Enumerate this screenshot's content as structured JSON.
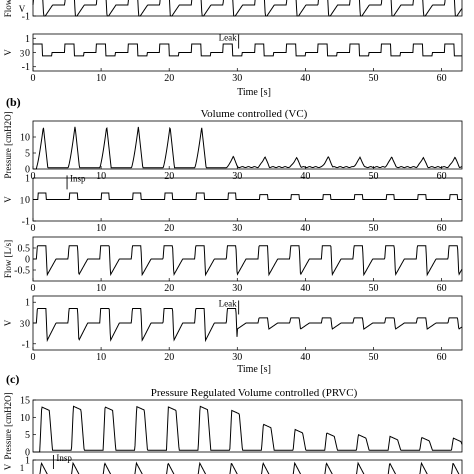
{
  "figure": {
    "panel_letters": [
      "(b)",
      "(c)"
    ],
    "panel_b_title": "Volume controlled (VC)",
    "panel_c_title": "Pressure Regulated Volume controlled (PRVC)",
    "top_x_label": "Time [s]",
    "b_x_label": "Time [s]",
    "annotations": {
      "leak": "Leak",
      "insp": "Insp"
    }
  },
  "chart_data": [
    {
      "id": "a-flow-tail",
      "type": "line",
      "ylabel": "Flow",
      "sublabel": "V",
      "xlim": [
        0,
        63
      ],
      "ylim": [
        -1,
        1
      ],
      "yticks": [
        -1
      ],
      "xticks": [],
      "series": [
        {
          "waveform": "flow_vc",
          "phase": 0,
          "amp": 1.0
        }
      ]
    },
    {
      "id": "a-v3",
      "type": "line",
      "ylabel": "V",
      "sublabel": "3",
      "xlim": [
        0,
        63
      ],
      "ylim": [
        -1.3,
        1.3
      ],
      "yticks": [
        1,
        0,
        -1
      ],
      "xticks": [
        0,
        10,
        20,
        30,
        40,
        50,
        60
      ],
      "xticklabels": [
        "0",
        "10",
        "20",
        "30",
        "40",
        "50",
        "60"
      ],
      "xlabel": "Time [s]",
      "series": [
        {
          "waveform": "square_v3",
          "phase": 0,
          "amp": 0.6
        }
      ],
      "annotations": [
        {
          "text": "Leak",
          "x": 30.2,
          "y": 0.7
        }
      ]
    },
    {
      "id": "b-pressure",
      "type": "line",
      "ylabel": "Pressure [cmH2O]",
      "sublabel": "",
      "xlim": [
        0,
        63
      ],
      "ylim": [
        0,
        15
      ],
      "yticks": [
        10,
        5,
        0
      ],
      "xticks": [
        0,
        10,
        20,
        30,
        40,
        50,
        60
      ],
      "xticklabels": [
        "0",
        "10",
        "20",
        "30",
        "40",
        "50",
        "60"
      ],
      "series": [
        {
          "waveform": "pressure_vc",
          "phase": 0.5,
          "peaks": [
            13.2,
            13.4,
            13.3,
            13.2,
            13.3,
            13.0,
            4.0,
            3.8,
            3.6,
            3.9,
            3.7,
            3.8,
            3.6
          ]
        }
      ]
    },
    {
      "id": "b-v1",
      "type": "line",
      "ylabel": "V",
      "sublabel": "1",
      "xlim": [
        0,
        63
      ],
      "ylim": [
        -1,
        1
      ],
      "yticks": [
        1,
        0,
        -1
      ],
      "xticks": [
        0,
        10,
        20,
        30,
        40,
        50,
        60
      ],
      "xticklabels": [
        "0",
        "10",
        "20",
        "30",
        "40",
        "50",
        "60"
      ],
      "series": [
        {
          "waveform": "square_v1",
          "phase": 0.5,
          "amp": 0.3
        }
      ],
      "annotations": [
        {
          "text": "Insp",
          "x": 5.0,
          "y": 0.75
        }
      ]
    },
    {
      "id": "b-v2",
      "type": "line",
      "ylabel": "Flow [L/s]",
      "sublabel": "V2",
      "xlim": [
        0,
        63
      ],
      "ylim": [
        -1,
        1
      ],
      "yticks": [
        0.5,
        0,
        -0.5
      ],
      "xticks": [
        0,
        10,
        20,
        30,
        40,
        50,
        60
      ],
      "xticklabels": [
        "0",
        "10",
        "20",
        "30",
        "40",
        "50",
        "60"
      ],
      "series": [
        {
          "waveform": "flow_vc",
          "phase": 0.5,
          "amp": 0.6
        }
      ]
    },
    {
      "id": "b-v3",
      "type": "line",
      "ylabel": "V",
      "sublabel": "3",
      "xlim": [
        0,
        63
      ],
      "ylim": [
        -1.3,
        1.3
      ],
      "yticks": [
        1,
        0,
        -1
      ],
      "xticks": [
        0,
        10,
        20,
        30,
        40,
        50,
        60
      ],
      "xticklabels": [
        "0",
        "10",
        "20",
        "30",
        "40",
        "50",
        "60"
      ],
      "xlabel": "Time [s]",
      "series": [
        {
          "waveform": "flow_vc_leak",
          "phase": 0.5,
          "amp": 0.7
        }
      ],
      "annotations": [
        {
          "text": "Leak",
          "x": 30.2,
          "y": 0.7
        }
      ]
    },
    {
      "id": "c-pressure",
      "type": "line",
      "ylabel": "Pressure [cmH2O]",
      "sublabel": "",
      "xlim": [
        0,
        63
      ],
      "ylim": [
        0,
        15
      ],
      "yticks": [
        15,
        10,
        5,
        0
      ],
      "xticks": [],
      "xticklabels": [],
      "series": [
        {
          "waveform": "pressure_prvc",
          "phase": 1.0,
          "peaks": [
            13.0,
            13.2,
            13.0,
            13.1,
            13.0,
            13.2,
            12.0,
            8.0,
            6.5,
            5.5,
            5.0,
            4.5,
            4.2
          ]
        }
      ]
    },
    {
      "id": "c-v1",
      "type": "line",
      "ylabel": "V",
      "sublabel": "1",
      "xlim": [
        0,
        63
      ],
      "ylim": [
        -1,
        1
      ],
      "yticks": [
        1
      ],
      "xticks": [],
      "series": [
        {
          "waveform": "bump",
          "phase": 1.0,
          "amp": 0.8
        }
      ],
      "annotations": [
        {
          "text": "Insp",
          "x": 3.0,
          "y": 0.8
        }
      ]
    }
  ]
}
